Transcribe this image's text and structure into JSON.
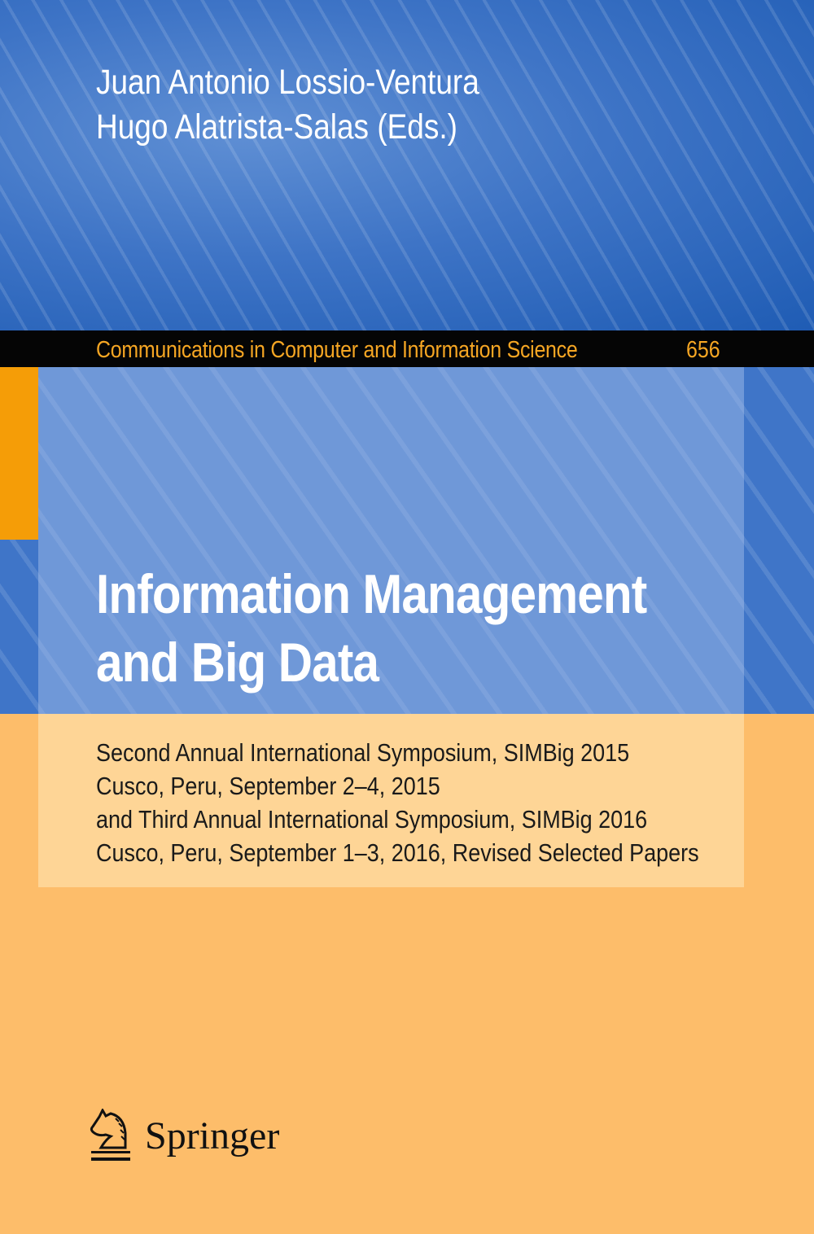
{
  "editors": [
    "Juan Antonio Lossio-Ventura",
    "Hugo Alatrista-Salas (Eds.)"
  ],
  "series": {
    "name": "Communications in Computer and Information Science",
    "volume": "656"
  },
  "title": [
    "Information Management",
    "and Big Data"
  ],
  "subtitle": [
    "Second Annual International Symposium, SIMBig 2015",
    "Cusco, Peru, September 2–4, 2015",
    "and Third Annual International Symposium, SIMBig 2016",
    "Cusco, Peru, September 1–3, 2016, Revised Selected Papers"
  ],
  "publisher": {
    "name": "Springer",
    "icon": "knight-horse-icon"
  },
  "colors": {
    "blue": "#3f75c8",
    "orange": "#fdbd6a",
    "accent": "#f59d07",
    "series_text": "#f6a623"
  }
}
